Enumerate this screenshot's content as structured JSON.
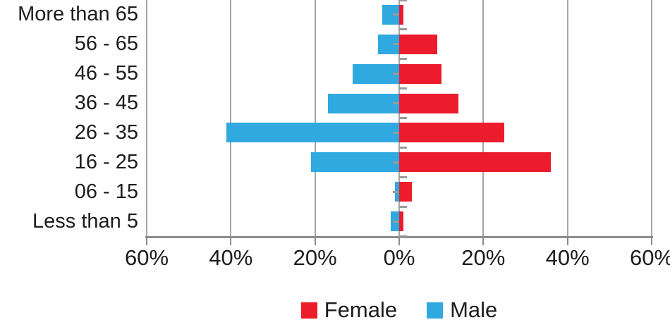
{
  "chart_data": {
    "type": "bar",
    "subtype": "population-pyramid",
    "title": "",
    "categories": [
      "More than 65",
      "56 - 65",
      "46 - 55",
      "36 - 45",
      "26 - 35",
      "16 - 25",
      "06 - 15",
      "Less than 5"
    ],
    "series": [
      {
        "name": "Female",
        "side": "right",
        "color": "#ec1c2d",
        "values": [
          1,
          9,
          10,
          14,
          25,
          36,
          3,
          1
        ]
      },
      {
        "name": "Male",
        "side": "left",
        "color": "#2fa9df",
        "values": [
          4,
          5,
          11,
          17,
          41,
          21,
          1,
          2
        ]
      }
    ],
    "x_axis": {
      "tick_labels": [
        "60%",
        "40%",
        "20%",
        "0%",
        "20%",
        "40%",
        "60%"
      ],
      "tick_values": [
        -60,
        -40,
        -20,
        0,
        20,
        40,
        60
      ],
      "range": [
        -60,
        60
      ],
      "unit": "%"
    },
    "y_axis": {
      "label": ""
    },
    "legend": {
      "position": "bottom",
      "entries": [
        "Female",
        "Male"
      ]
    },
    "grid": true,
    "colors": {
      "gridline": "#a6a6a6",
      "axis": "#8c8c8c",
      "category_tick": "#9b9b9b",
      "text": "#1c1c1c",
      "background": "#ffffff"
    }
  }
}
